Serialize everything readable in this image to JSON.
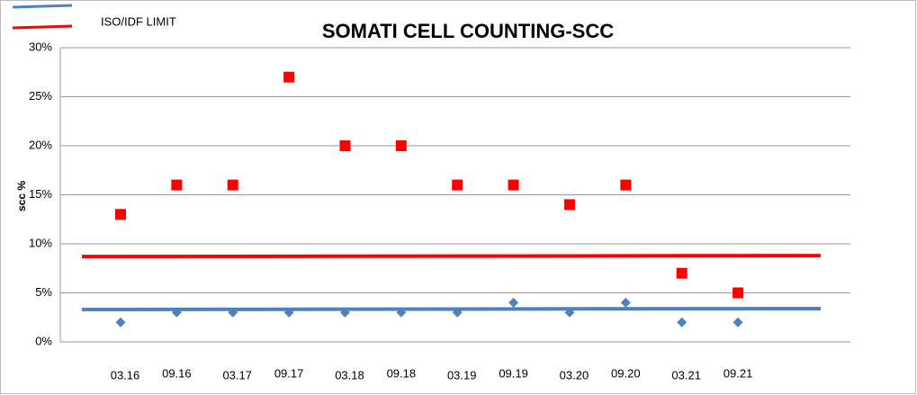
{
  "chart_data": {
    "type": "scatter",
    "title": "SOMATI CELL COUNTING-SCC",
    "y_label": "scc %",
    "categories": [
      "03.16",
      "09.16",
      "03.17",
      "09.17",
      "03.18",
      "09.18",
      "03.19",
      "09.19",
      "03.20",
      "09.20",
      "03.21",
      "09.21"
    ],
    "series": [
      {
        "color": "#4f81bd",
        "marker": "diamond",
        "values": [
          2,
          3,
          3,
          3,
          3,
          3,
          3,
          4,
          3,
          4,
          2,
          2
        ]
      },
      {
        "color": "#ff0000",
        "marker": "square",
        "values": [
          13,
          16,
          16,
          27,
          20,
          20,
          16,
          16,
          14,
          16,
          7,
          5
        ]
      }
    ],
    "trend_lines": [
      {
        "color": "#4f81bd",
        "values": [
          3.3,
          3.4
        ]
      },
      {
        "name": "ISO/IDF LIMIT",
        "color": "#ff0000",
        "values": [
          8.7,
          8.8
        ]
      }
    ],
    "ylim": [
      0,
      30
    ],
    "yticks": [
      {
        "value": 0,
        "label": "0%"
      },
      {
        "value": 5,
        "label": "5%"
      },
      {
        "value": 10,
        "label": "10%"
      },
      {
        "value": 15,
        "label": "15%"
      },
      {
        "value": 20,
        "label": "20%"
      },
      {
        "value": 25,
        "label": "25%"
      },
      {
        "value": 30,
        "label": "30%"
      }
    ],
    "grid": true
  }
}
